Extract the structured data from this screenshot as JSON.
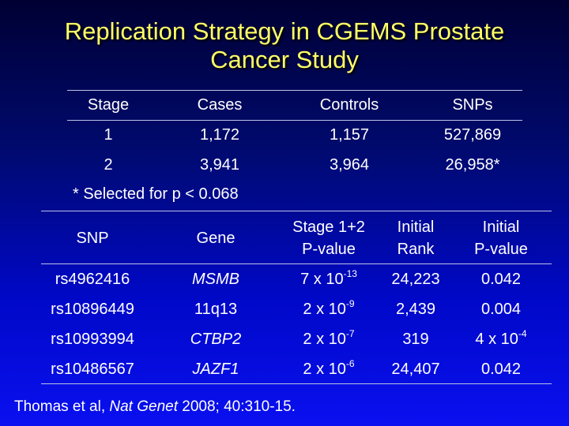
{
  "title_line1": "Replication Strategy in CGEMS Prostate",
  "title_line2": "Cancer Study",
  "stage_table": {
    "headers": [
      "Stage",
      "Cases",
      "Controls",
      "SNPs"
    ],
    "rows": [
      [
        "1",
        "1,172",
        "1,157",
        "527,869"
      ],
      [
        "2",
        "3,941",
        "3,964",
        "26,958*"
      ]
    ],
    "footnote": "* Selected for p < 0.068"
  },
  "snp_table": {
    "headers": [
      [
        "SNP",
        ""
      ],
      [
        "Gene",
        ""
      ],
      [
        "Stage 1+2",
        "P-value"
      ],
      [
        "Initial",
        "Rank"
      ],
      [
        "Initial",
        "P-value"
      ]
    ],
    "rows": [
      {
        "snp": "rs4962416",
        "gene": "MSMB",
        "gene_italic": true,
        "p_base": "7 x 10",
        "p_exp": "-13",
        "rank": "24,223",
        "ip_base": "0.042",
        "ip_exp": ""
      },
      {
        "snp": "rs10896449",
        "gene": "11q13",
        "gene_italic": false,
        "p_base": "2 x 10",
        "p_exp": "-9",
        "rank": "2,439",
        "ip_base": "0.004",
        "ip_exp": ""
      },
      {
        "snp": "rs10993994",
        "gene": "CTBP2",
        "gene_italic": true,
        "p_base": "2 x 10",
        "p_exp": "-7",
        "rank": "319",
        "ip_base": "4 x 10",
        "ip_exp": "-4"
      },
      {
        "snp": "rs10486567",
        "gene": "JAZF1",
        "gene_italic": true,
        "p_base": "2 x 10",
        "p_exp": "-6",
        "rank": "24,407",
        "ip_base": "0.042",
        "ip_exp": ""
      }
    ]
  },
  "citation": {
    "authors": "Thomas et al, ",
    "journal": "Nat Genet",
    "rest": " 2008; 40:310-15."
  },
  "colors": {
    "title": "#ffff66",
    "text": "#ffffff",
    "background_top": "#000033",
    "background_bottom": "#0a10f0"
  }
}
